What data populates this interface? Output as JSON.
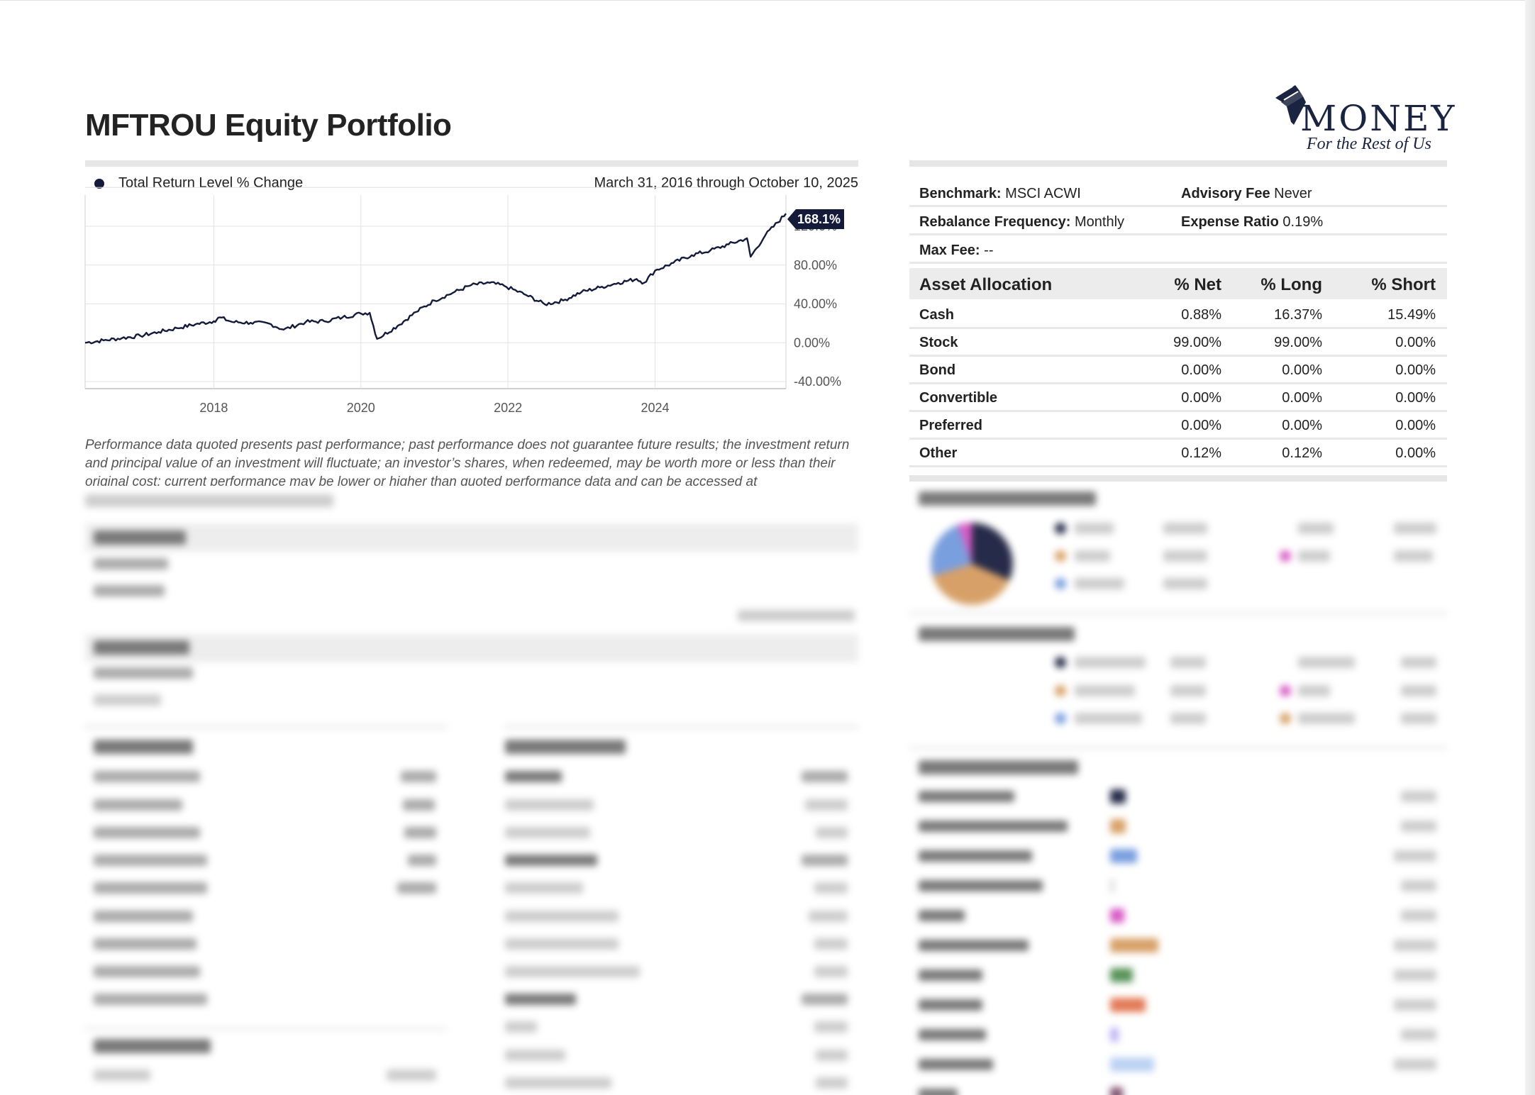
{
  "title": "MFTROU Equity Portfolio",
  "logo": {
    "wordmark": "MONEY",
    "tagline": "For the Rest of Us"
  },
  "chart": {
    "legend": "Total Return Level % Change",
    "date_range": "March 31, 2016 through October 10, 2025",
    "last_value_label": "168.1%",
    "line_color": "#141a3a"
  },
  "chart_data": {
    "type": "line",
    "title": "",
    "xlabel": "",
    "ylabel": "",
    "x_ticks": [
      "2018",
      "2020",
      "2022",
      "2024"
    ],
    "y_ticks": [
      "120.0%",
      "80.00%",
      "40.00%",
      "0.00%",
      "-40.00%"
    ],
    "ylim": [
      -40,
      200
    ],
    "xlim": [
      2016.25,
      2025.78
    ],
    "grid": true,
    "legend_position": "top-left",
    "series": [
      {
        "name": "Total Return Level % Change",
        "x": [
          2016.25,
          2016.5,
          2016.75,
          2017.0,
          2017.25,
          2017.5,
          2017.75,
          2018.0,
          2018.08,
          2018.25,
          2018.5,
          2018.75,
          2018.95,
          2019.25,
          2019.5,
          2019.75,
          2020.0,
          2020.12,
          2020.22,
          2020.5,
          2020.75,
          2021.0,
          2021.25,
          2021.5,
          2021.75,
          2021.95,
          2022.25,
          2022.5,
          2022.75,
          2023.0,
          2023.25,
          2023.5,
          2023.75,
          2023.85,
          2024.0,
          2024.25,
          2024.5,
          2024.75,
          2025.0,
          2025.25,
          2025.3,
          2025.5,
          2025.78
        ],
        "y": [
          0,
          3,
          6,
          9,
          14,
          19,
          24,
          28,
          33,
          27,
          26,
          25,
          17,
          27,
          28,
          33,
          38,
          39,
          5,
          22,
          40,
          55,
          65,
          75,
          78,
          74,
          62,
          50,
          55,
          66,
          72,
          78,
          83,
          78,
          94,
          104,
          114,
          120,
          128,
          136,
          112,
          140,
          168.1
        ]
      }
    ]
  },
  "disclaimer": "Performance data quoted presents past performance; past performance does not guarantee future results; the investment return and principal value of an investment will fluctuate; an investor’s shares, when redeemed, may be worth more or less than their original cost; current performance may be lower or higher than quoted performance data and can be accessed at",
  "info": {
    "benchmark_label": "Benchmark:",
    "benchmark_value": "MSCI ACWI",
    "advisory_fee_label": "Advisory Fee",
    "advisory_fee_value": "Never",
    "rebalance_label": "Rebalance Frequency:",
    "rebalance_value": "Monthly",
    "expense_label": "Expense Ratio",
    "expense_value": "0.19%",
    "max_fee_label": "Max Fee:",
    "max_fee_value": "--"
  },
  "asset_allocation": {
    "headers": [
      "Asset Allocation",
      "% Net",
      "% Long",
      "% Short"
    ],
    "rows": [
      {
        "label": "Cash",
        "net": "0.88%",
        "long": "16.37%",
        "short": "15.49%"
      },
      {
        "label": "Stock",
        "net": "99.00%",
        "long": "99.00%",
        "short": "0.00%"
      },
      {
        "label": "Bond",
        "net": "0.00%",
        "long": "0.00%",
        "short": "0.00%"
      },
      {
        "label": "Convertible",
        "net": "0.00%",
        "long": "0.00%",
        "short": "0.00%"
      },
      {
        "label": "Preferred",
        "net": "0.00%",
        "long": "0.00%",
        "short": "0.00%"
      },
      {
        "label": "Other",
        "net": "0.12%",
        "long": "0.12%",
        "short": "0.00%"
      }
    ]
  },
  "colors": {
    "navy": "#141a3a",
    "orange": "#d4995c",
    "blue": "#6f97dc",
    "pink": "#d64fc1",
    "green": "#4b8a4b",
    "red": "#e0704a"
  }
}
